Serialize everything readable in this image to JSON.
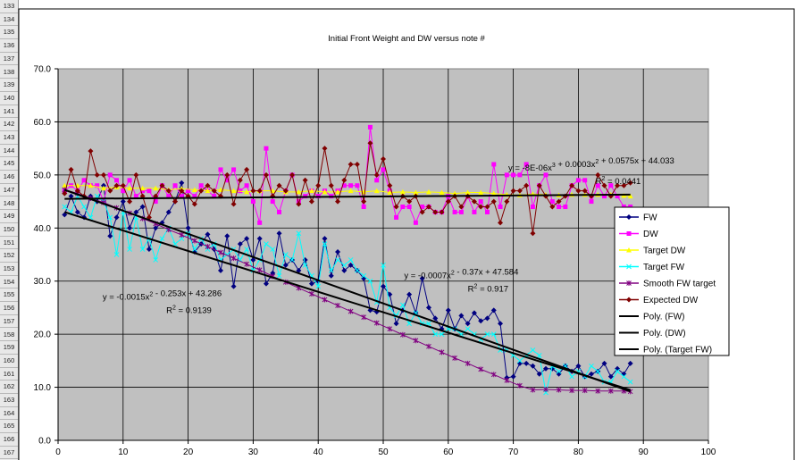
{
  "spreadsheet": {
    "row_numbers": [
      "133",
      "134",
      "135",
      "136",
      "137",
      "138",
      "139",
      "140",
      "141",
      "142",
      "143",
      "144",
      "145",
      "146",
      "147",
      "148",
      "149",
      "150",
      "151",
      "152",
      "153",
      "154",
      "155",
      "156",
      "157",
      "158",
      "159",
      "160",
      "161",
      "162",
      "163",
      "164",
      "165",
      "166",
      "167"
    ]
  },
  "chart_data": {
    "type": "line",
    "title": "Initial Front Weight and DW versus note #",
    "xlim": [
      0,
      100
    ],
    "ylim": [
      0,
      70
    ],
    "x_ticks": [
      "0",
      "10",
      "20",
      "30",
      "40",
      "50",
      "60",
      "70",
      "80",
      "90",
      "100"
    ],
    "y_ticks": [
      "0.0",
      "10.0",
      "20.0",
      "30.0",
      "40.0",
      "50.0",
      "60.0",
      "70.0"
    ],
    "grid": true,
    "plot_background": "#c0c0c0",
    "legend_position": "right",
    "series": [
      {
        "name": "FW",
        "color": "#000080",
        "marker": "diamond",
        "x": [
          1,
          2,
          3,
          4,
          5,
          6,
          7,
          8,
          9,
          10,
          11,
          12,
          13,
          14,
          15,
          16,
          17,
          18,
          19,
          20,
          21,
          22,
          23,
          24,
          25,
          26,
          27,
          28,
          29,
          30,
          31,
          32,
          33,
          34,
          35,
          36,
          37,
          38,
          39,
          40,
          41,
          42,
          43,
          44,
          45,
          46,
          47,
          48,
          49,
          50,
          51,
          52,
          53,
          54,
          55,
          56,
          57,
          58,
          59,
          60,
          61,
          62,
          63,
          64,
          65,
          66,
          67,
          68,
          69,
          70,
          71,
          72,
          73,
          74,
          75,
          76,
          77,
          78,
          79,
          80,
          81,
          82,
          83,
          84,
          85,
          86,
          87,
          88
        ],
        "y": [
          42.5,
          46,
          43,
          42,
          46,
          45,
          48,
          38.5,
          42,
          45,
          40,
          43,
          44,
          36,
          40,
          41,
          43,
          45,
          48.5,
          40,
          35.5,
          37,
          38.8,
          36,
          32,
          38.5,
          29,
          37,
          38,
          34,
          38,
          29.5,
          31.5,
          39,
          33,
          34,
          32,
          34,
          29.5,
          30,
          38,
          31,
          35.5,
          32,
          33,
          32,
          30.5,
          24.5,
          24.2,
          29,
          27.5,
          22,
          24.5,
          27.5,
          24,
          30.5,
          25,
          23,
          21,
          24.5,
          21,
          23.5,
          22,
          24,
          22.5,
          23,
          24.5,
          22,
          11.8,
          12,
          14.5,
          14.5,
          14,
          12.5,
          13.5,
          13.5,
          12.5,
          14,
          13,
          14,
          12,
          12.5,
          13,
          14.5,
          12,
          13.5,
          12.5,
          14.5
        ]
      },
      {
        "name": "DW",
        "color": "#ff00ff",
        "marker": "square",
        "x": [
          1,
          2,
          3,
          4,
          5,
          6,
          7,
          8,
          9,
          10,
          11,
          12,
          13,
          14,
          15,
          16,
          17,
          18,
          19,
          20,
          21,
          22,
          23,
          24,
          25,
          26,
          27,
          28,
          29,
          30,
          31,
          32,
          33,
          34,
          35,
          36,
          37,
          38,
          39,
          40,
          41,
          42,
          43,
          44,
          45,
          46,
          47,
          48,
          49,
          50,
          51,
          52,
          53,
          54,
          55,
          56,
          57,
          58,
          59,
          60,
          61,
          62,
          63,
          64,
          65,
          66,
          67,
          68,
          69,
          70,
          71,
          72,
          73,
          74,
          75,
          76,
          77,
          78,
          79,
          80,
          81,
          82,
          83,
          84,
          85,
          86,
          87,
          88
        ],
        "y": [
          47,
          48,
          47,
          49,
          48,
          48,
          45,
          50,
          49,
          47,
          49,
          46,
          47,
          47,
          45,
          48,
          46,
          48,
          46,
          47,
          46,
          48,
          47,
          46,
          51,
          49,
          51,
          47,
          48,
          45,
          41,
          55,
          45,
          43,
          47,
          50,
          45,
          46,
          47,
          46,
          47,
          46,
          47,
          48,
          48,
          48,
          44,
          59,
          49,
          51,
          47,
          42,
          44,
          44,
          41,
          44,
          44,
          43,
          43,
          46,
          43,
          43,
          46,
          43,
          45,
          43,
          52,
          44,
          50,
          50,
          50,
          52,
          44,
          48,
          50,
          45,
          44,
          44,
          48,
          49,
          49,
          45,
          48,
          46,
          48,
          46,
          44,
          44
        ]
      },
      {
        "name": "Target DW",
        "color": "#ffff00",
        "marker": "triangle",
        "x": [
          1,
          3,
          5,
          7,
          9,
          11,
          13,
          15,
          17,
          19,
          21,
          23,
          25,
          27,
          29,
          31,
          33,
          35,
          37,
          39,
          41,
          43,
          45,
          47,
          49,
          51,
          53,
          55,
          57,
          59,
          61,
          63,
          65,
          67,
          69,
          71,
          73,
          75,
          77,
          79,
          81,
          83,
          85,
          87,
          88
        ],
        "y": [
          48,
          48,
          48,
          47.5,
          47.7,
          47.5,
          47.5,
          47.5,
          47.2,
          47.4,
          47.2,
          47,
          47.2,
          47,
          46.8,
          47,
          47,
          46.8,
          46.8,
          47,
          46.8,
          46.8,
          47,
          46.8,
          47,
          46.7,
          46.8,
          46.7,
          46.8,
          46.7,
          46.5,
          46.7,
          46.7,
          46.5,
          46.3,
          46.2,
          46.4,
          46.3,
          46.2,
          46.3,
          46.3,
          46.3,
          46.3,
          46.1,
          46
        ]
      },
      {
        "name": "Target FW",
        "color": "#00ffff",
        "marker": "x",
        "x": [
          1,
          2,
          3,
          4,
          5,
          6,
          7,
          8,
          9,
          10,
          11,
          12,
          13,
          14,
          15,
          16,
          17,
          18,
          19,
          20,
          21,
          22,
          23,
          24,
          25,
          26,
          27,
          28,
          29,
          30,
          31,
          32,
          33,
          34,
          35,
          36,
          37,
          38,
          39,
          40,
          41,
          42,
          43,
          44,
          45,
          46,
          47,
          48,
          49,
          50,
          51,
          52,
          53,
          54,
          55,
          56,
          57,
          58,
          59,
          60,
          61,
          62,
          63,
          64,
          65,
          66,
          67,
          68,
          69,
          70,
          71,
          72,
          73,
          74,
          75,
          76,
          77,
          78,
          79,
          80,
          81,
          82,
          83,
          84,
          85,
          86,
          87,
          88
        ],
        "y": [
          44,
          43,
          46,
          44,
          42,
          46,
          45,
          42,
          35,
          43,
          36,
          42,
          36,
          38,
          34,
          38,
          40,
          37,
          38,
          39,
          36,
          38,
          36,
          37,
          34,
          35,
          36,
          34,
          36,
          32,
          34,
          37,
          36,
          31,
          35,
          34,
          39,
          33,
          31,
          29,
          37,
          32,
          34,
          33,
          34,
          32,
          31,
          30,
          26,
          33,
          25,
          23.5,
          25.5,
          22,
          24,
          22,
          22,
          20,
          20,
          21,
          21,
          20,
          21,
          20,
          19,
          20,
          20,
          17,
          17,
          16,
          15,
          16,
          17,
          16,
          9,
          14,
          13,
          14,
          12,
          13,
          12,
          14,
          13,
          11,
          11,
          13,
          12,
          11
        ]
      },
      {
        "name": "Smooth FW target",
        "color": "#800080",
        "marker": "star",
        "x": [
          1,
          3,
          5,
          7,
          9,
          11,
          13,
          15,
          17,
          19,
          21,
          23,
          25,
          27,
          29,
          31,
          33,
          35,
          37,
          39,
          41,
          43,
          45,
          47,
          49,
          51,
          53,
          55,
          57,
          59,
          61,
          63,
          65,
          67,
          69,
          71,
          73,
          75,
          77,
          79,
          81,
          83,
          85,
          87,
          88
        ],
        "y": [
          47.2,
          46.5,
          45.6,
          44.8,
          43.8,
          42.8,
          41.8,
          40.8,
          39.7,
          38.7,
          37.6,
          36.5,
          35.4,
          34.3,
          33.2,
          32.1,
          30.9,
          29.8,
          28.7,
          27.6,
          26.5,
          25.4,
          24.3,
          23.2,
          22.1,
          21,
          19.9,
          18.8,
          17.7,
          16.6,
          15.5,
          14.5,
          13.4,
          12.4,
          11.3,
          10.3,
          9.5,
          9.6,
          9.5,
          9.4,
          9.4,
          9.3,
          9.3,
          9.3,
          9.2
        ]
      },
      {
        "name": "Expected DW",
        "color": "#800000",
        "marker": "diamond",
        "x": [
          1,
          2,
          3,
          4,
          5,
          6,
          7,
          8,
          9,
          10,
          11,
          12,
          13,
          14,
          15,
          16,
          17,
          18,
          19,
          20,
          21,
          22,
          23,
          24,
          25,
          26,
          27,
          28,
          29,
          30,
          31,
          32,
          33,
          34,
          35,
          36,
          37,
          38,
          39,
          40,
          41,
          42,
          43,
          44,
          45,
          46,
          47,
          48,
          49,
          50,
          51,
          52,
          53,
          54,
          55,
          56,
          57,
          58,
          59,
          60,
          61,
          62,
          63,
          64,
          65,
          66,
          67,
          68,
          69,
          70,
          71,
          72,
          73,
          74,
          75,
          76,
          77,
          78,
          79,
          80,
          81,
          82,
          83,
          84,
          85,
          86,
          87,
          88
        ],
        "y": [
          46.5,
          51,
          47,
          46,
          54.5,
          50,
          50,
          47,
          48,
          48,
          45,
          50,
          46,
          42,
          46,
          48,
          47,
          45,
          47,
          46,
          44.5,
          47,
          48,
          47,
          46,
          50,
          44.5,
          49,
          51,
          47,
          47,
          50,
          46,
          48,
          47,
          50,
          44.5,
          49,
          45,
          48,
          55,
          48,
          45,
          49,
          52,
          52,
          45,
          56,
          50,
          53,
          48,
          44,
          46,
          45,
          46,
          43,
          44,
          43,
          43,
          45,
          46,
          44,
          46,
          45,
          44,
          44,
          45,
          41,
          45,
          47,
          47,
          48,
          39,
          48,
          46,
          44,
          45,
          46,
          48,
          47,
          47,
          46,
          50,
          48,
          46,
          48,
          48,
          48.5
        ]
      },
      {
        "name": "Poly. (FW)",
        "color": "#000000",
        "marker": "none",
        "x": [
          1,
          88
        ],
        "y": [
          47.2,
          9.2
        ],
        "trendline": "poly"
      },
      {
        "name": "Poly. (DW)",
        "color": "#000000",
        "marker": "none",
        "x": [
          1,
          88
        ],
        "y": [
          45.5,
          46.3
        ],
        "trendline": "poly"
      },
      {
        "name": "Poly. (Target FW)",
        "color": "#000000",
        "marker": "none",
        "x": [
          1,
          88
        ],
        "y": [
          43.0,
          9.5
        ],
        "trendline": "poly"
      }
    ],
    "annotations": [
      {
        "eq_main": "y = -8E-06x",
        "sup1": "3",
        "eq_mid": " + 0.0003x",
        "sup2": "2",
        "eq_tail": " + 0.0575x + 44.033",
        "r2_main": "R",
        "r2_sup": "2",
        "r2_tail": " = 0.0441",
        "pos": [
          82,
          50.8
        ]
      },
      {
        "eq_main": "y = -0.0007x",
        "sup1": "",
        "eq_mid": "",
        "sup2": "2",
        "eq_tail": " - 0.37x + 47.584",
        "r2_main": "R",
        "r2_sup": "2",
        "r2_tail": " = 0.917",
        "pos": [
          62,
          30.5
        ]
      },
      {
        "eq_main": "y = -0.0015x",
        "sup1": "",
        "eq_mid": "",
        "sup2": "2",
        "eq_tail": " - 0.253x + 43.286",
        "r2_main": "R",
        "r2_sup": "2",
        "r2_tail": " = 0.9139",
        "pos": [
          16,
          26.5
        ]
      }
    ]
  }
}
